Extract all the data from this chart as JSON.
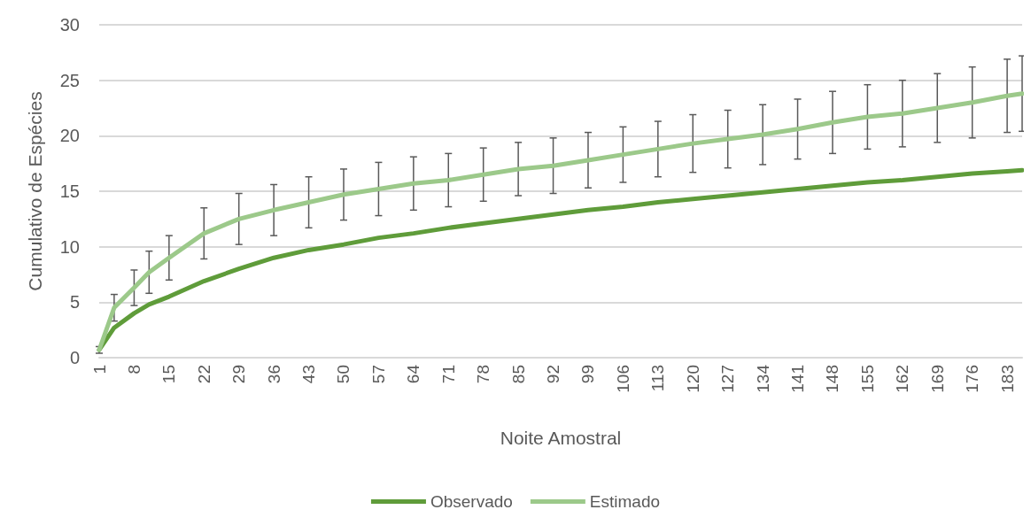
{
  "chart_data": {
    "type": "line",
    "xlabel": "Noite Amostral",
    "ylabel": "Cumulativo de Espécies",
    "x": [
      1,
      4,
      8,
      11,
      15,
      22,
      29,
      36,
      43,
      50,
      57,
      64,
      71,
      78,
      85,
      92,
      99,
      106,
      113,
      120,
      127,
      134,
      141,
      148,
      155,
      162,
      169,
      176,
      183,
      186
    ],
    "series": [
      {
        "name": "Observado",
        "color": "#5f9c3a",
        "values": [
          0.7,
          2.7,
          4.0,
          4.8,
          5.5,
          6.9,
          8.0,
          9.0,
          9.7,
          10.2,
          10.8,
          11.2,
          11.7,
          12.1,
          12.5,
          12.9,
          13.3,
          13.6,
          14.0,
          14.3,
          14.6,
          14.9,
          15.2,
          15.5,
          15.8,
          16.0,
          16.3,
          16.6,
          16.8,
          16.9
        ]
      },
      {
        "name": "Estimado",
        "color": "#9cc98a",
        "values": [
          0.7,
          4.5,
          6.3,
          7.7,
          9.0,
          11.2,
          12.5,
          13.3,
          14.0,
          14.7,
          15.2,
          15.7,
          16.0,
          16.5,
          17.0,
          17.3,
          17.8,
          18.3,
          18.8,
          19.3,
          19.7,
          20.1,
          20.6,
          21.2,
          21.7,
          22.0,
          22.5,
          23.0,
          23.6,
          23.8
        ],
        "errors": [
          0.3,
          1.2,
          1.6,
          1.9,
          2.0,
          2.3,
          2.3,
          2.3,
          2.3,
          2.3,
          2.4,
          2.4,
          2.4,
          2.4,
          2.4,
          2.5,
          2.5,
          2.5,
          2.5,
          2.6,
          2.6,
          2.7,
          2.7,
          2.8,
          2.9,
          3.0,
          3.1,
          3.2,
          3.3,
          3.4
        ]
      }
    ],
    "xlim": [
      1,
      186
    ],
    "xticks": [
      1,
      8,
      15,
      22,
      29,
      36,
      43,
      50,
      57,
      64,
      71,
      78,
      85,
      92,
      99,
      106,
      113,
      120,
      127,
      134,
      141,
      148,
      155,
      162,
      169,
      176,
      183
    ],
    "ylim": [
      0,
      30
    ],
    "yticks": [
      0,
      5,
      10,
      15,
      20,
      25,
      30
    ],
    "grid": "y",
    "legend": "bottom",
    "marker": "none",
    "line_style": "solid"
  }
}
